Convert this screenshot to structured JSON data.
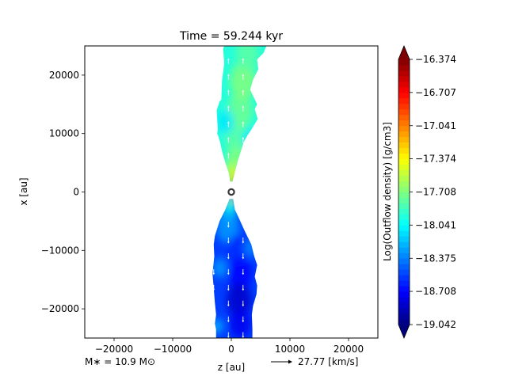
{
  "chart_data": {
    "type": "heatmap",
    "title": "Time = 59.244 kyr",
    "xlabel": "z [au]",
    "ylabel": "x [au]",
    "xlim": [
      -25000,
      25000
    ],
    "ylim": [
      -25000,
      25000
    ],
    "xticks": [
      -20000,
      -10000,
      0,
      10000,
      20000
    ],
    "xtick_labels": [
      "−20000",
      "−10000",
      "0",
      "10000",
      "20000"
    ],
    "yticks": [
      -20000,
      -10000,
      0,
      10000,
      20000
    ],
    "ytick_labels": [
      "−20000",
      "−10000",
      "0",
      "10000",
      "20000"
    ],
    "grid": false,
    "colormap": "jet",
    "colorbar": {
      "label": "Log(Outflow density) [g/cm3]",
      "min": -19.042,
      "max": -16.374,
      "extend": "both",
      "ticks": [
        -16.374,
        -16.707,
        -17.041,
        -17.374,
        -17.708,
        -18.041,
        -18.375,
        -18.708,
        -19.042
      ],
      "tick_labels": [
        "−16.374",
        "−16.707",
        "−17.041",
        "−17.374",
        "−17.708",
        "−18.041",
        "−18.375",
        "−18.708",
        "−19.042"
      ]
    },
    "star_marker": {
      "z": 0,
      "x": 0
    },
    "outflow_regions": [
      {
        "name": "upper-lobe",
        "boundary": [
          [
            -200,
            1800
          ],
          [
            -400,
            3200
          ],
          [
            -1000,
            5000
          ],
          [
            -1600,
            7000
          ],
          [
            -1900,
            8500
          ],
          [
            -2200,
            9500
          ],
          [
            -2400,
            10000
          ],
          [
            -2300,
            10700
          ],
          [
            -2500,
            14000
          ],
          [
            -2000,
            15500
          ],
          [
            -1700,
            15800
          ],
          [
            -1600,
            19000
          ],
          [
            -1200,
            22000
          ],
          [
            -1400,
            24500
          ],
          [
            -1200,
            25000
          ],
          [
            6000,
            25000
          ],
          [
            5500,
            23800
          ],
          [
            4400,
            22700
          ],
          [
            4600,
            21000
          ],
          [
            3700,
            19200
          ],
          [
            3200,
            17500
          ],
          [
            4400,
            15000
          ],
          [
            4000,
            14200
          ],
          [
            4500,
            12500
          ],
          [
            3500,
            10800
          ],
          [
            2800,
            9800
          ],
          [
            2100,
            8500
          ],
          [
            1000,
            5000
          ],
          [
            500,
            3000
          ],
          [
            200,
            1800
          ]
        ]
      },
      {
        "name": "lower-lobe",
        "boundary": [
          [
            -300,
            -1200
          ],
          [
            -1000,
            -3000
          ],
          [
            -2000,
            -5000
          ],
          [
            -2800,
            -7500
          ],
          [
            -3000,
            -9000
          ],
          [
            -2900,
            -11000
          ],
          [
            -3200,
            -14000
          ],
          [
            -2800,
            -19000
          ],
          [
            -2600,
            -21000
          ],
          [
            -2800,
            -22500
          ],
          [
            -2600,
            -23500
          ],
          [
            -2600,
            -25000
          ],
          [
            3600,
            -25000
          ],
          [
            3600,
            -23500
          ],
          [
            3500,
            -21000
          ],
          [
            3700,
            -19500
          ],
          [
            4300,
            -17500
          ],
          [
            4400,
            -16000
          ],
          [
            4000,
            -14500
          ],
          [
            4400,
            -12500
          ],
          [
            3900,
            -11000
          ],
          [
            3400,
            -9000
          ],
          [
            2200,
            -6500
          ],
          [
            1300,
            -4500
          ],
          [
            600,
            -3000
          ],
          [
            300,
            -1200
          ]
        ]
      }
    ],
    "color_blobs": [
      {
        "z": 800,
        "x": 800,
        "r": 700,
        "value": -16.5
      },
      {
        "z": 900,
        "x": 1600,
        "r": 900,
        "value": -16.8
      },
      {
        "z": 700,
        "x": 2500,
        "r": 1100,
        "value": -17.1
      },
      {
        "z": 300,
        "x": 3800,
        "r": 1400,
        "value": -17.5
      },
      {
        "z": 1000,
        "x": 6500,
        "r": 1800,
        "value": -17.7
      },
      {
        "z": 800,
        "x": 10000,
        "r": 2000,
        "value": -17.8
      },
      {
        "z": 1500,
        "x": 14000,
        "r": 2200,
        "value": -17.75
      },
      {
        "z": 2000,
        "x": 19000,
        "r": 2300,
        "value": -17.7
      },
      {
        "z": 2700,
        "x": 23500,
        "r": 2000,
        "value": -17.8
      },
      {
        "z": -1000,
        "x": 12000,
        "r": 1500,
        "value": -18.1
      },
      {
        "z": 3200,
        "x": 9000,
        "r": 1400,
        "value": -18.1
      },
      {
        "z": 0,
        "x": -1500,
        "r": 900,
        "value": -17.5
      },
      {
        "z": -400,
        "x": -3200,
        "r": 1400,
        "value": -18.0
      },
      {
        "z": -600,
        "x": -6000,
        "r": 2000,
        "value": -18.3
      },
      {
        "z": 1200,
        "x": -10000,
        "r": 2000,
        "value": -18.6
      },
      {
        "z": 1500,
        "x": -14000,
        "r": 2000,
        "value": -18.7
      },
      {
        "z": 1300,
        "x": -18500,
        "r": 2100,
        "value": -18.85
      },
      {
        "z": 1500,
        "x": -22500,
        "r": 1800,
        "value": -18.75
      },
      {
        "z": -2000,
        "x": -13000,
        "r": 1200,
        "value": -18.3
      },
      {
        "z": 3300,
        "x": -9500,
        "r": 1100,
        "value": -18.35
      },
      {
        "z": -2400,
        "x": -23000,
        "r": 900,
        "value": -18.2
      }
    ],
    "velocity_key": {
      "label": "27.77 [km/s]"
    },
    "annotation": "M∗ = 10.9 M⊙"
  }
}
